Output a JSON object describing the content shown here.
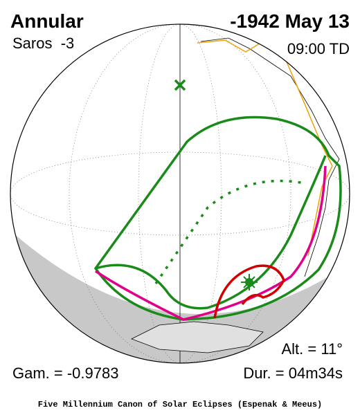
{
  "header": {
    "title": "Annular",
    "date": "-1942 May 13",
    "saros": "Saros  -3",
    "time": "09:00 TD"
  },
  "stats": {
    "altitude": "Alt. = 11°",
    "gamma": "Gam. = -0.9783",
    "duration": "Dur. = 04m34s"
  },
  "footer": {
    "credit": "Five Millennium Canon of Solar Eclipses (Espenak & Meeus)"
  }
}
